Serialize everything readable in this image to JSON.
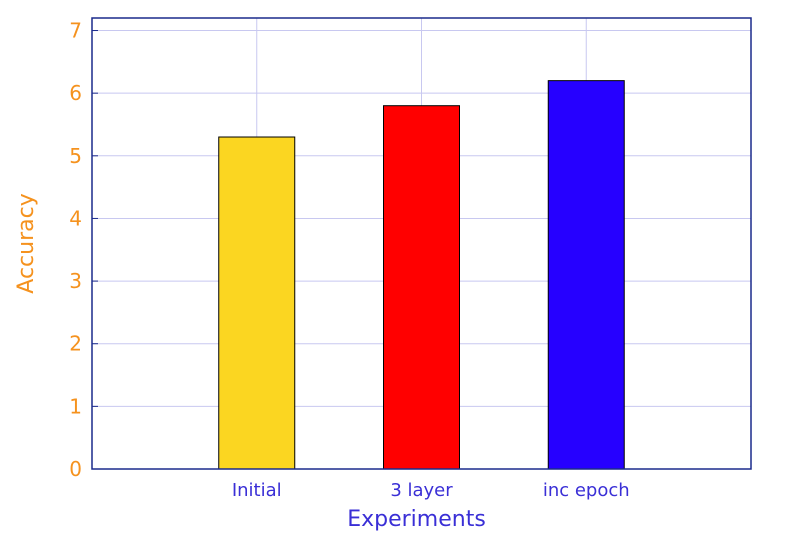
{
  "chart_data": {
    "type": "bar",
    "title": "",
    "xlabel": "Experiments",
    "ylabel": "Accuracy",
    "categories": [
      "Initial",
      "3 layer",
      "inc epoch"
    ],
    "values": [
      5.3,
      5.8,
      6.2
    ],
    "bar_colors": [
      "#FBD621",
      "#FF0000",
      "#2600FF"
    ],
    "ylim": [
      0,
      7.2
    ],
    "yticks": [
      "0",
      "1",
      "2",
      "3",
      "4",
      "5",
      "6",
      "7"
    ],
    "grid": true,
    "colors": {
      "axis": "#1A2A8C",
      "grid": "#C8C8F0",
      "ytick_text": "#F5921E",
      "ylabel_text": "#F5921E",
      "xtick_text": "#3A2FD6",
      "xlabel_text": "#3A2FD6"
    }
  }
}
